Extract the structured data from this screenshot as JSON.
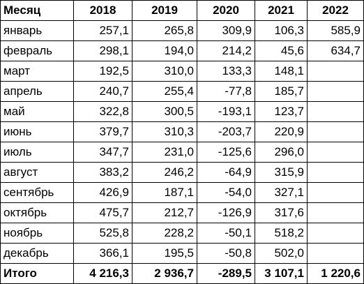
{
  "headers": [
    "Месяц",
    "2018",
    "2019",
    "2020",
    "2021",
    "2022"
  ],
  "rows": [
    [
      "январь",
      "257,1",
      "265,8",
      "309,9",
      "106,3",
      "585,9"
    ],
    [
      "февраль",
      "298,1",
      "194,0",
      "214,2",
      "45,6",
      "634,7"
    ],
    [
      "март",
      "192,5",
      "310,0",
      "133,3",
      "148,1",
      ""
    ],
    [
      "апрель",
      "240,7",
      "255,4",
      "-77,8",
      "185,7",
      ""
    ],
    [
      "май",
      "322,8",
      "300,5",
      "-193,1",
      "123,7",
      ""
    ],
    [
      "июнь",
      "379,7",
      "310,3",
      "-203,7",
      "220,9",
      ""
    ],
    [
      "июль",
      "347,7",
      "231,0",
      "-125,6",
      "296,0",
      ""
    ],
    [
      "август",
      "383,2",
      "246,2",
      "-64,9",
      "315,9",
      ""
    ],
    [
      "сентябрь",
      "426,9",
      "187,1",
      "-54,0",
      "327,1",
      ""
    ],
    [
      "октябрь",
      "475,7",
      "212,7",
      "-126,9",
      "317,6",
      ""
    ],
    [
      "ноябрь",
      "525,8",
      "228,2",
      "-50,1",
      "518,2",
      ""
    ],
    [
      "декабрь",
      "366,1",
      "195,5",
      "-50,8",
      "502,0",
      ""
    ]
  ],
  "total": [
    "Итого",
    "4 216,3",
    "2 936,7",
    "-289,5",
    "3 107,1",
    "1 220,6"
  ]
}
